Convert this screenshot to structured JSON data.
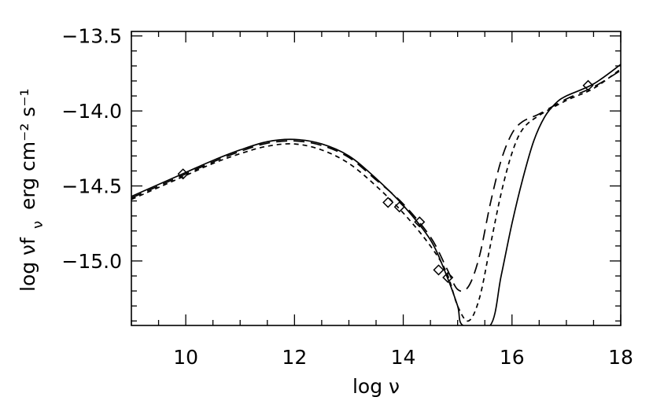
{
  "chart_data": {
    "type": "line",
    "title": "",
    "xlabel": "log ν",
    "ylabel_main": "log νf",
    "ylabel_sub": "ν",
    "ylabel_units": "erg cm⁻² s⁻¹",
    "xlim": [
      9,
      18
    ],
    "ylim": [
      -15.43,
      -13.47
    ],
    "x_ticks": [
      10,
      12,
      14,
      16,
      18
    ],
    "x_tick_labels": [
      "10",
      "12",
      "14",
      "16",
      "18"
    ],
    "y_ticks": [
      -13.5,
      -14.0,
      -14.5,
      -15.0
    ],
    "y_tick_labels": [
      "−13.5",
      "−14.0",
      "−14.5",
      "−15.0"
    ],
    "grid": false,
    "legend": "none",
    "series": [
      {
        "style": "solid",
        "points": [
          [
            9.0,
            -14.57
          ],
          [
            9.5,
            -14.49
          ],
          [
            10.0,
            -14.41
          ],
          [
            10.5,
            -14.33
          ],
          [
            11.0,
            -14.26
          ],
          [
            11.5,
            -14.205
          ],
          [
            12.0,
            -14.19
          ],
          [
            12.5,
            -14.22
          ],
          [
            13.0,
            -14.3
          ],
          [
            13.5,
            -14.45
          ],
          [
            14.0,
            -14.63
          ],
          [
            14.5,
            -14.86
          ],
          [
            14.8,
            -15.1
          ],
          [
            15.0,
            -15.3
          ],
          [
            15.1,
            -15.43
          ],
          [
            15.6,
            -15.43
          ],
          [
            15.8,
            -15.1
          ],
          [
            16.0,
            -14.75
          ],
          [
            16.2,
            -14.45
          ],
          [
            16.4,
            -14.2
          ],
          [
            16.6,
            -14.04
          ],
          [
            16.8,
            -13.95
          ],
          [
            17.0,
            -13.9
          ],
          [
            17.5,
            -13.82
          ],
          [
            18.0,
            -13.69
          ]
        ]
      },
      {
        "style": "long-dash",
        "points": [
          [
            9.0,
            -14.58
          ],
          [
            9.5,
            -14.5
          ],
          [
            10.0,
            -14.42
          ],
          [
            10.5,
            -14.34
          ],
          [
            11.0,
            -14.27
          ],
          [
            11.5,
            -14.215
          ],
          [
            12.0,
            -14.2
          ],
          [
            12.5,
            -14.23
          ],
          [
            13.0,
            -14.31
          ],
          [
            13.5,
            -14.46
          ],
          [
            14.0,
            -14.62
          ],
          [
            14.5,
            -14.84
          ],
          [
            14.8,
            -15.05
          ],
          [
            15.0,
            -15.19
          ],
          [
            15.2,
            -15.17
          ],
          [
            15.4,
            -14.97
          ],
          [
            15.6,
            -14.62
          ],
          [
            15.8,
            -14.33
          ],
          [
            16.0,
            -14.15
          ],
          [
            16.2,
            -14.07
          ],
          [
            16.5,
            -14.02
          ],
          [
            17.0,
            -13.92
          ],
          [
            17.5,
            -13.84
          ],
          [
            18.0,
            -13.73
          ]
        ]
      },
      {
        "style": "short-dash",
        "points": [
          [
            9.0,
            -14.59
          ],
          [
            9.5,
            -14.51
          ],
          [
            10.0,
            -14.43
          ],
          [
            10.5,
            -14.35
          ],
          [
            11.0,
            -14.285
          ],
          [
            11.5,
            -14.235
          ],
          [
            12.0,
            -14.22
          ],
          [
            12.5,
            -14.26
          ],
          [
            13.0,
            -14.35
          ],
          [
            13.5,
            -14.5
          ],
          [
            14.0,
            -14.68
          ],
          [
            14.5,
            -14.9
          ],
          [
            14.8,
            -15.08
          ],
          [
            15.0,
            -15.3
          ],
          [
            15.2,
            -15.4
          ],
          [
            15.4,
            -15.25
          ],
          [
            15.6,
            -14.9
          ],
          [
            15.8,
            -14.55
          ],
          [
            16.0,
            -14.28
          ],
          [
            16.2,
            -14.12
          ],
          [
            16.5,
            -14.03
          ],
          [
            17.0,
            -13.93
          ],
          [
            17.5,
            -13.85
          ],
          [
            18.0,
            -13.72
          ]
        ]
      }
    ],
    "observations": {
      "marker": "diamond",
      "points": [
        [
          9.95,
          -14.42
        ],
        [
          13.72,
          -14.61
        ],
        [
          13.93,
          -14.64
        ],
        [
          14.3,
          -14.74
        ],
        [
          14.65,
          -15.06
        ],
        [
          14.82,
          -15.11
        ],
        [
          17.4,
          -13.83
        ]
      ]
    }
  }
}
